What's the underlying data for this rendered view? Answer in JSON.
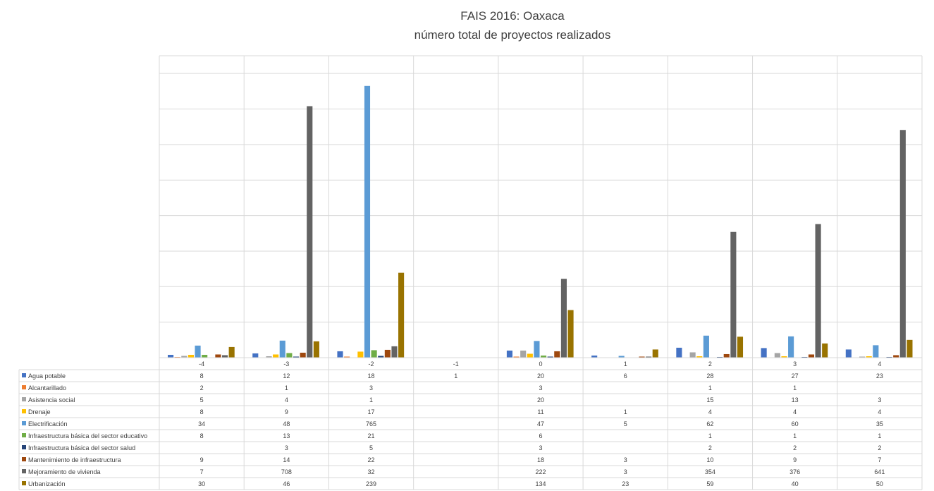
{
  "chart_data": {
    "type": "bar",
    "title": "FAIS 2016: Oaxaca",
    "subtitle": "número total de proyectos realizados",
    "categories": [
      "-4",
      "-3",
      "-2",
      "-1",
      "0",
      "1",
      "2",
      "3",
      "4"
    ],
    "ylim": [
      0,
      850
    ],
    "grid": true,
    "legend": "data-table-left",
    "series": [
      {
        "name": "Agua potable",
        "color": "#4472C4",
        "values": [
          8,
          12,
          18,
          1,
          20,
          6,
          28,
          27,
          23
        ]
      },
      {
        "name": "Alcantarillado",
        "color": "#ED7D31",
        "values": [
          2,
          1,
          3,
          null,
          3,
          null,
          1,
          1,
          null
        ]
      },
      {
        "name": "Asistencia social",
        "color": "#A5A5A5",
        "values": [
          5,
          4,
          1,
          null,
          20,
          null,
          15,
          13,
          3
        ]
      },
      {
        "name": "Drenaje",
        "color": "#FFC000",
        "values": [
          8,
          9,
          17,
          null,
          11,
          1,
          4,
          4,
          4
        ]
      },
      {
        "name": "Electrificación",
        "color": "#5B9BD5",
        "values": [
          34,
          48,
          765,
          null,
          47,
          5,
          62,
          60,
          35
        ]
      },
      {
        "name": "Infraestructura básica del sector educativo",
        "color": "#70AD47",
        "values": [
          8,
          13,
          21,
          null,
          6,
          null,
          1,
          1,
          1
        ]
      },
      {
        "name": "Infraestructura básica del sector salud",
        "color": "#264478",
        "values": [
          null,
          3,
          5,
          null,
          3,
          null,
          2,
          2,
          2
        ]
      },
      {
        "name": "Mantenimiento de infraestructura",
        "color": "#9E480E",
        "values": [
          9,
          14,
          22,
          null,
          18,
          3,
          10,
          9,
          7
        ]
      },
      {
        "name": "Mejoramiento de vivienda",
        "color": "#636363",
        "values": [
          7,
          708,
          32,
          null,
          222,
          3,
          354,
          376,
          641
        ]
      },
      {
        "name": "Urbanización",
        "color": "#997300",
        "values": [
          30,
          46,
          239,
          null,
          134,
          23,
          59,
          40,
          50
        ]
      }
    ]
  }
}
